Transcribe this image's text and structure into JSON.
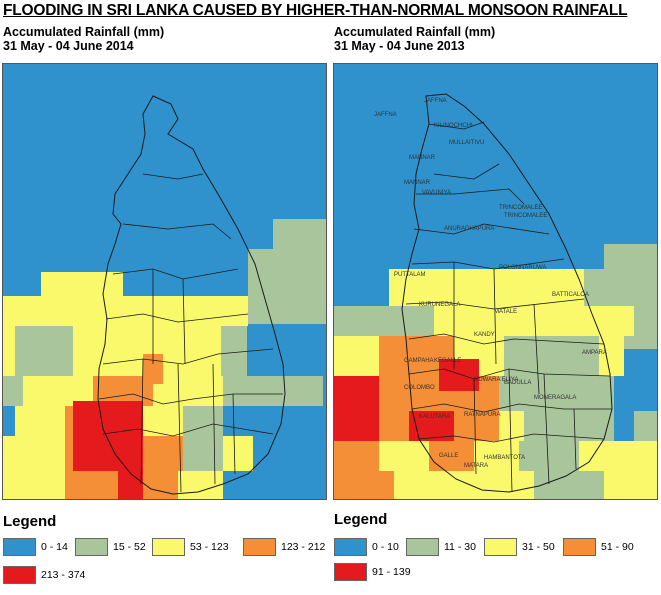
{
  "title": "FLOODING IN SRI LANKA CAUSED BY HIGHER-THAN-NORMAL MONSOON RAINFALL",
  "colors": {
    "c1": "#2f92cc",
    "c2": "#a9c59b",
    "c3": "#f9f96b",
    "c4": "#f58f37",
    "c5": "#e41a1c"
  },
  "maps": [
    {
      "subtitle_line1": "Accumulated Rainfall (mm)",
      "subtitle_line2": "31 May - 04 June 2014"
    },
    {
      "subtitle_line1": "Accumulated Rainfall (mm)",
      "subtitle_line2": "31 May - 04 June 2013",
      "places": [
        "JAFFNA",
        "JAFFNA",
        "KILINOCHCHI",
        "MULLAITIVU",
        "MANNAR",
        "MANNAR",
        "VAVUNIYA",
        "TRINCOMALEE",
        "TRINCOMALEE",
        "ANURADHAPURA",
        "POLONNARUWA",
        "PUTTALAM",
        "BATTICALOA",
        "KURUNEGALA",
        "MATALE",
        "KANDY",
        "AMPARA",
        "GAMPAHA",
        "KEGALLE",
        "NUWARA ELIYA",
        "BADULLA",
        "COLOMBO",
        "MONERAGALA",
        "KALUTARA",
        "RATNAPURA",
        "GALLE",
        "HAMBANTOTA",
        "MATARA"
      ]
    }
  ],
  "legends": [
    {
      "title": "Legend",
      "items": [
        {
          "label": "0 - 14",
          "color": "#2f92cc"
        },
        {
          "label": "15 - 52",
          "color": "#a9c59b"
        },
        {
          "label": "53 - 123",
          "color": "#f9f96b"
        },
        {
          "label": "123 - 212",
          "color": "#f58f37"
        },
        {
          "label": "213 - 374",
          "color": "#e41a1c"
        }
      ]
    },
    {
      "title": "Legend",
      "items": [
        {
          "label": "0 - 10",
          "color": "#2f92cc"
        },
        {
          "label": "11 - 30",
          "color": "#a9c59b"
        },
        {
          "label": "31 - 50",
          "color": "#f9f96b"
        },
        {
          "label": "51 - 90",
          "color": "#f58f37"
        },
        {
          "label": "91 - 139",
          "color": "#e41a1c"
        }
      ]
    }
  ]
}
